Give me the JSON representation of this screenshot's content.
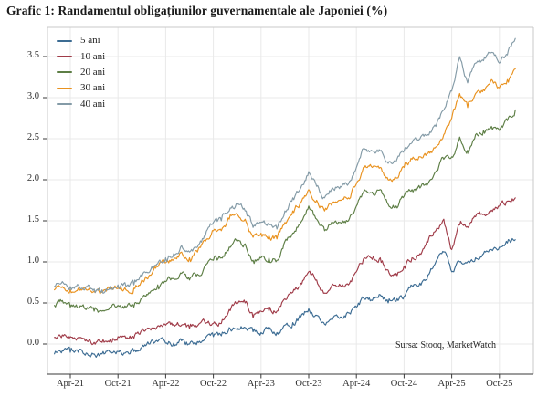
{
  "chart": {
    "title": "Grafic 1: Randamentul obligațiunilor guvernamentale ale Japoniei (%)",
    "source_note": "Sursa: Stooq, MarketWatch"
  },
  "chart_data": {
    "type": "line",
    "title": "Grafic 1: Randamentul obligațiunilor guvernamentale ale Japoniei (%)",
    "ylabel": "",
    "xlabel": "",
    "grid": true,
    "legend_position": "top-left",
    "source": "Sursa: Stooq, MarketWatch",
    "x_unit": "monthly, Feb-2021 to Dec-2025",
    "x_start_month": "Feb-21",
    "x_tick_labels": [
      "Apr-21",
      "Oct-21",
      "Apr-22",
      "Oct-22",
      "Apr-23",
      "Oct-23",
      "Apr-24",
      "Oct-24",
      "Apr-25",
      "Oct-25"
    ],
    "y_tick_labels": [
      "0.0",
      "0.5",
      "1.0",
      "1.5",
      "2.0",
      "2.5",
      "3.0",
      "3.5"
    ],
    "ylim": [
      -0.36,
      3.86
    ],
    "axis_color": "#3a3a3a",
    "grid_color": "#e9e9e9",
    "spine_color": "#c8c8c8",
    "series": [
      {
        "name": "5 ani",
        "color": "#3c6c93",
        "values": [
          -0.12,
          -0.08,
          -0.1,
          -0.1,
          -0.11,
          -0.12,
          -0.12,
          -0.1,
          -0.09,
          -0.1,
          -0.09,
          -0.04,
          0.0,
          0.03,
          0.01,
          0.01,
          0.04,
          0.0,
          0.03,
          0.07,
          0.09,
          0.1,
          0.2,
          0.17,
          0.2,
          0.15,
          0.14,
          0.17,
          0.14,
          0.23,
          0.26,
          0.33,
          0.43,
          0.35,
          0.24,
          0.3,
          0.33,
          0.38,
          0.45,
          0.55,
          0.53,
          0.6,
          0.5,
          0.52,
          0.58,
          0.71,
          0.74,
          0.84,
          1.0,
          1.12,
          0.88,
          1.0,
          1.0,
          1.05,
          1.1,
          1.15,
          1.18,
          1.23,
          1.27
        ]
      },
      {
        "name": "10 ani",
        "color": "#a03c49",
        "values": [
          0.08,
          0.11,
          0.09,
          0.08,
          0.05,
          0.02,
          0.02,
          0.05,
          0.09,
          0.07,
          0.07,
          0.17,
          0.19,
          0.22,
          0.23,
          0.24,
          0.23,
          0.19,
          0.22,
          0.25,
          0.25,
          0.25,
          0.42,
          0.49,
          0.5,
          0.32,
          0.4,
          0.4,
          0.4,
          0.55,
          0.63,
          0.74,
          0.88,
          0.78,
          0.62,
          0.73,
          0.71,
          0.72,
          0.88,
          1.05,
          1.03,
          1.05,
          0.9,
          0.86,
          0.95,
          1.05,
          1.1,
          1.24,
          1.38,
          1.52,
          1.15,
          1.45,
          1.43,
          1.55,
          1.58,
          1.63,
          1.68,
          1.74,
          1.78
        ]
      },
      {
        "name": "20 ani",
        "color": "#5d7e45",
        "values": [
          0.47,
          0.53,
          0.45,
          0.44,
          0.42,
          0.4,
          0.4,
          0.45,
          0.47,
          0.45,
          0.45,
          0.55,
          0.62,
          0.72,
          0.76,
          0.8,
          0.86,
          0.78,
          0.85,
          0.95,
          1.02,
          1.05,
          1.18,
          1.25,
          1.22,
          1.02,
          1.05,
          1.05,
          1.02,
          1.25,
          1.35,
          1.48,
          1.68,
          1.52,
          1.38,
          1.48,
          1.48,
          1.5,
          1.68,
          1.88,
          1.85,
          1.88,
          1.7,
          1.68,
          1.8,
          1.88,
          1.9,
          1.95,
          2.1,
          2.25,
          2.28,
          2.52,
          2.36,
          2.55,
          2.6,
          2.65,
          2.6,
          2.72,
          2.85
        ]
      },
      {
        "name": "30 ani",
        "color": "#e9921f",
        "values": [
          0.66,
          0.7,
          0.66,
          0.68,
          0.66,
          0.64,
          0.63,
          0.67,
          0.68,
          0.66,
          0.68,
          0.78,
          0.84,
          0.94,
          0.99,
          1.03,
          1.12,
          1.05,
          1.12,
          1.25,
          1.38,
          1.38,
          1.52,
          1.58,
          1.52,
          1.3,
          1.35,
          1.32,
          1.28,
          1.48,
          1.62,
          1.72,
          1.88,
          1.75,
          1.62,
          1.72,
          1.75,
          1.78,
          1.95,
          2.15,
          2.15,
          2.15,
          2.0,
          2.02,
          2.15,
          2.25,
          2.28,
          2.32,
          2.4,
          2.55,
          2.75,
          3.05,
          2.88,
          3.05,
          3.1,
          3.22,
          3.12,
          3.22,
          3.35
        ]
      },
      {
        "name": "40 ani",
        "color": "#849ba7",
        "values": [
          0.7,
          0.76,
          0.7,
          0.72,
          0.7,
          0.67,
          0.66,
          0.7,
          0.72,
          0.7,
          0.72,
          0.82,
          0.88,
          0.98,
          1.05,
          1.1,
          1.2,
          1.12,
          1.18,
          1.32,
          1.48,
          1.5,
          1.62,
          1.7,
          1.62,
          1.42,
          1.48,
          1.45,
          1.4,
          1.62,
          1.78,
          1.9,
          2.1,
          1.92,
          1.78,
          1.9,
          1.92,
          1.95,
          2.15,
          2.38,
          2.35,
          2.35,
          2.2,
          2.22,
          2.35,
          2.45,
          2.5,
          2.55,
          2.65,
          2.85,
          3.08,
          3.5,
          3.18,
          3.42,
          3.45,
          3.55,
          3.42,
          3.52,
          3.72
        ]
      }
    ]
  }
}
